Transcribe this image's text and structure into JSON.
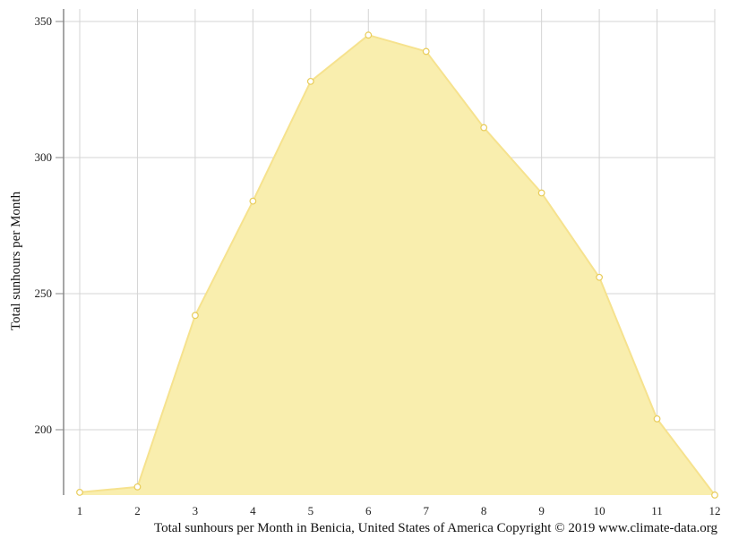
{
  "chart_data": {
    "type": "area",
    "x": [
      1,
      2,
      3,
      4,
      5,
      6,
      7,
      8,
      9,
      10,
      11,
      12
    ],
    "series": [
      {
        "values": [
          177,
          179,
          242,
          284,
          328,
          345,
          339,
          311,
          287,
          256,
          204,
          176
        ]
      }
    ],
    "xlim": [
      1,
      12
    ],
    "ylim": [
      176,
      355
    ],
    "yticks": [
      200,
      250,
      300,
      350
    ],
    "xticks": [
      1,
      2,
      3,
      4,
      5,
      6,
      7,
      8,
      9,
      10,
      11,
      12
    ],
    "ylabel": "Total sunhours per Month",
    "xlabel": "",
    "caption": "Total sunhours per Month in Benicia, United States of America Copyright © 2019 www.climate-data.org",
    "grid": true,
    "colors": {
      "fill": "#f9eeae",
      "line": "#f6e28e",
      "marker_fill": "#ffffff",
      "marker_stroke": "#e8cc5a",
      "grid": "#d4d4d4",
      "axis": "#888888"
    }
  }
}
